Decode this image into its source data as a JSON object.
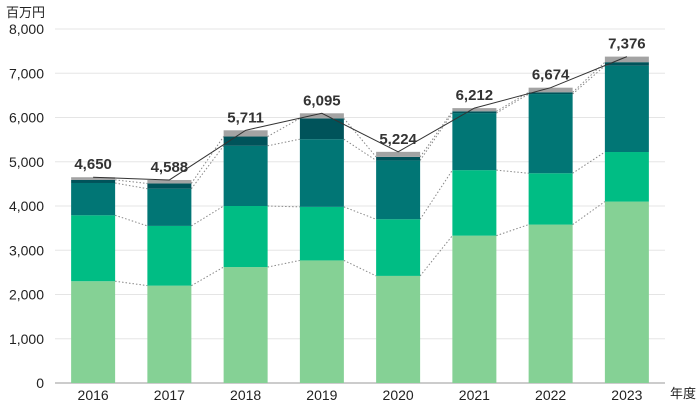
{
  "chart_data": {
    "type": "bar",
    "stacked": true,
    "y_unit": "百万円",
    "x_unit": "年度",
    "categories": [
      "2016",
      "2017",
      "2018",
      "2019",
      "2020",
      "2021",
      "2022",
      "2023"
    ],
    "series": [
      {
        "values": [
          2300,
          2200,
          2620,
          2770,
          2420,
          3330,
          3580,
          4100
        ],
        "color": "#85d195"
      },
      {
        "values": [
          1490,
          1350,
          1380,
          1210,
          1280,
          1480,
          1160,
          1120
        ],
        "color": "#00bd84"
      },
      {
        "values": [
          730,
          840,
          1360,
          1530,
          1330,
          1290,
          1790,
          1950
        ],
        "color": "#017675"
      },
      {
        "values": [
          70,
          120,
          210,
          470,
          80,
          40,
          40,
          80
        ],
        "color": "#00535a"
      },
      {
        "values": [
          60,
          78,
          141,
          115,
          114,
          72,
          104,
          126
        ],
        "color": "#a3a3a3"
      }
    ],
    "totals": [
      "4,650",
      "4,588",
      "5,711",
      "6,095",
      "5,224",
      "6,212",
      "6,674",
      "7,376"
    ],
    "total_values": [
      4650,
      4588,
      5711,
      6095,
      5224,
      6212,
      6674,
      7376
    ],
    "ylim": [
      0,
      8000
    ],
    "yticks": [
      "0",
      "1,000",
      "2,000",
      "3,000",
      "4,000",
      "5,000",
      "6,000",
      "7,000",
      "8,000"
    ],
    "grid": true,
    "colors": {
      "grid": "#e5e5e5",
      "axis": "#999999",
      "total_line": "#333333",
      "connector": "#888888"
    }
  }
}
